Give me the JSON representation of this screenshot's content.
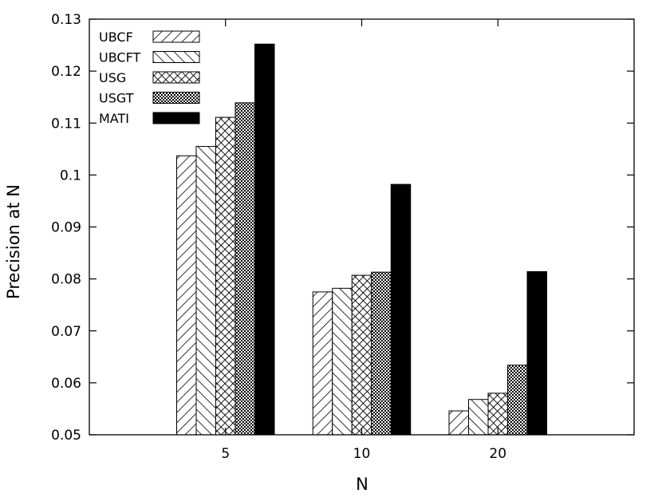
{
  "chart_data": {
    "type": "bar",
    "title": "",
    "xlabel": "N",
    "ylabel": "Precision at N",
    "categories": [
      "5",
      "10",
      "20"
    ],
    "ylim": [
      0.05,
      0.13
    ],
    "yticks": [
      "0.05",
      "0.06",
      "0.07",
      "0.08",
      "0.09",
      "0.1",
      "0.11",
      "0.12",
      "0.13"
    ],
    "grid": false,
    "legend_position": "top-left",
    "series": [
      {
        "name": "UBCF",
        "pattern": "diag-right",
        "values": [
          0.1037,
          0.0775,
          0.0546
        ]
      },
      {
        "name": "UBCFT",
        "pattern": "diag-left",
        "values": [
          0.1055,
          0.0782,
          0.0568
        ]
      },
      {
        "name": "USG",
        "pattern": "cross-hatch",
        "values": [
          0.1111,
          0.0807,
          0.058
        ]
      },
      {
        "name": "USGT",
        "pattern": "fine-check",
        "values": [
          0.1139,
          0.0813,
          0.0634
        ]
      },
      {
        "name": "MATI",
        "pattern": "solid-black",
        "values": [
          0.1252,
          0.0982,
          0.0814
        ]
      }
    ]
  }
}
